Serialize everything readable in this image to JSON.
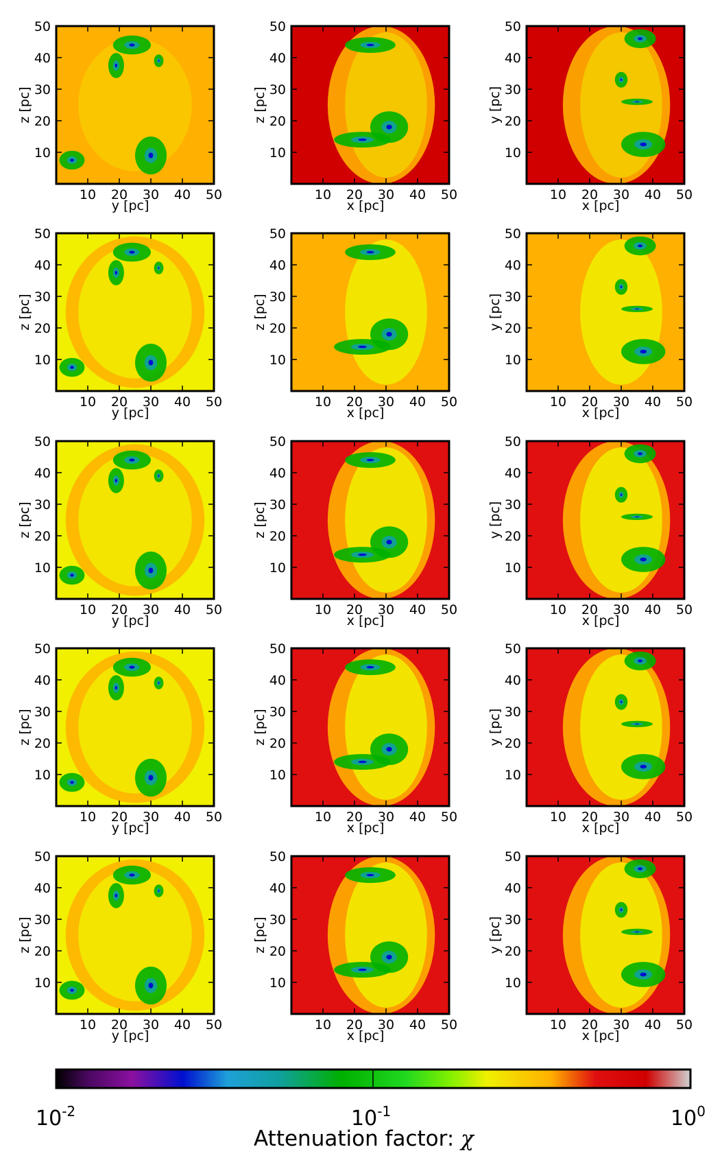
{
  "chart_data": {
    "type": "heatmap",
    "layout": {
      "rows": 5,
      "columns": 3
    },
    "columns": [
      {
        "xlabel": "y [pc]",
        "ylabel": "z [pc]"
      },
      {
        "xlabel": "x [pc]",
        "ylabel": "z [pc]"
      },
      {
        "xlabel": "x [pc]",
        "ylabel": "y [pc]"
      }
    ],
    "xlim": [
      0,
      50
    ],
    "ylim": [
      0,
      50
    ],
    "xticks": [
      "10",
      "20",
      "30",
      "40",
      "50"
    ],
    "yticks": [
      "10",
      "20",
      "30",
      "40",
      "50"
    ],
    "row_background_levels": [
      [
        0.4,
        0.72,
        0.72
      ],
      [
        0.28,
        0.45,
        0.45
      ],
      [
        0.32,
        0.55,
        0.55
      ],
      [
        0.3,
        0.55,
        0.55
      ],
      [
        0.28,
        0.55,
        0.55
      ]
    ],
    "colorbar": {
      "label": "Attenuation factor: ",
      "symbol": "χ",
      "scale": "log",
      "range": [
        0.01,
        1
      ],
      "ticks": [
        {
          "base": "10",
          "exp": "-2",
          "value": 0.01
        },
        {
          "base": "10",
          "exp": "-1",
          "value": 0.1
        },
        {
          "base": "10",
          "exp": "0",
          "value": 1
        }
      ]
    },
    "colors": {
      "low": "#000000",
      "purple": "#8b10a0",
      "blue": "#0010d0",
      "cyan": "#1ea0d8",
      "teal": "#10a0a0",
      "green": "#00b000",
      "lime": "#40f040",
      "yellow": "#f0f000",
      "orange": "#ffb000",
      "red": "#e01010",
      "dark_red": "#d00000",
      "high": "#d0d0d0"
    }
  }
}
